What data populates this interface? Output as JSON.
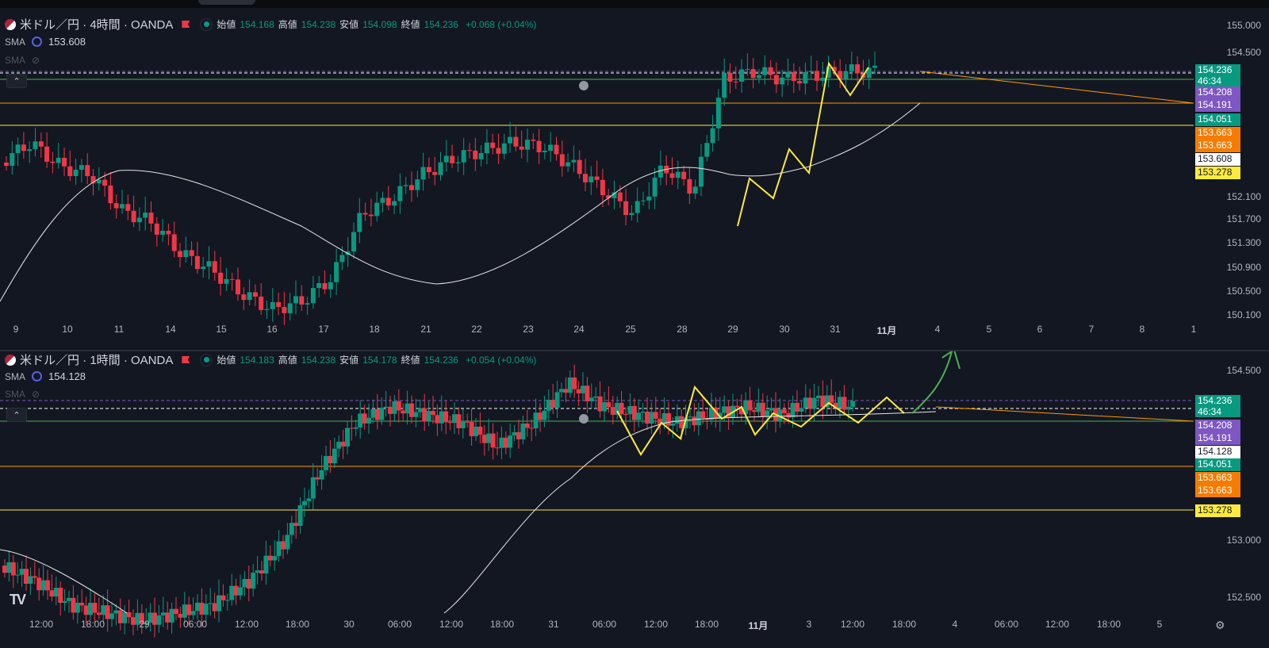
{
  "colors": {
    "bg": "#131722",
    "up": "#089981",
    "down": "#f23645",
    "sma": "#e6e6e6",
    "accent_purple": "#7e57c2",
    "yellow": "#ffeb3b",
    "orange": "#ff9800",
    "green_line": "#4caf50"
  },
  "pane1": {
    "symbol": "米ドル／円 · 4時間 · OANDA",
    "ohlc": {
      "open_label": "始値",
      "open": "154.168",
      "high_label": "高値",
      "high": "154.238",
      "low_label": "安値",
      "low": "154.098",
      "close_label": "終値",
      "close": "154.236",
      "change": "+0.068 (+0.04%)"
    },
    "sma_label": "SMA",
    "sma_value": "153.608",
    "sma2_label": "SMA",
    "price_ticks": [
      "155.000",
      "154.500",
      "152.100",
      "151.700",
      "151.300",
      "150.900",
      "150.500",
      "150.100"
    ],
    "tags": [
      {
        "text": "154.236",
        "sub": "46:34",
        "kind": "green"
      },
      {
        "text": "154.208",
        "kind": "purple"
      },
      {
        "text": "154.191",
        "kind": "purple"
      },
      {
        "text": "154.051",
        "kind": "green"
      },
      {
        "text": "153.663",
        "kind": "orange"
      },
      {
        "text": "153.663",
        "kind": "orange"
      },
      {
        "text": "153.608",
        "kind": "white"
      },
      {
        "text": "153.278",
        "kind": "yellow"
      }
    ],
    "time_labels": [
      "9",
      "10",
      "11",
      "14",
      "15",
      "16",
      "17",
      "18",
      "21",
      "22",
      "23",
      "24",
      "25",
      "28",
      "29",
      "30",
      "31",
      "11月",
      "4",
      "5",
      "6",
      "7",
      "8",
      "1"
    ]
  },
  "pane2": {
    "symbol": "米ドル／円 · 1時間 · OANDA",
    "ohlc": {
      "open_label": "始値",
      "open": "154.183",
      "high_label": "高値",
      "high": "154.238",
      "low_label": "安値",
      "low": "154.178",
      "close_label": "終値",
      "close": "154.236",
      "change": "+0.054 (+0.04%)"
    },
    "sma_label": "SMA",
    "sma_value": "154.128",
    "sma2_label": "SMA",
    "price_ticks": [
      "154.500",
      "153.000",
      "152.500"
    ],
    "tags": [
      {
        "text": "154.236",
        "sub": "46:34",
        "kind": "green"
      },
      {
        "text": "154.208",
        "kind": "purple"
      },
      {
        "text": "154.191",
        "kind": "purple"
      },
      {
        "text": "154.128",
        "kind": "white"
      },
      {
        "text": "154.051",
        "kind": "green"
      },
      {
        "text": "153.663",
        "kind": "orange"
      },
      {
        "text": "153.663",
        "kind": "orange"
      },
      {
        "text": "153.278",
        "kind": "yellow"
      }
    ],
    "time_labels": [
      "12:00",
      "18:00",
      "29",
      "06:00",
      "12:00",
      "18:00",
      "30",
      "06:00",
      "12:00",
      "18:00",
      "31",
      "06:00",
      "12:00",
      "18:00",
      "11月",
      "3",
      "12:00",
      "18:00",
      "4",
      "06:00",
      "12:00",
      "18:00",
      "5"
    ]
  },
  "logo": "TV",
  "icons": [
    "flag-icon",
    "flag-marker-icon",
    "status-dot-icon",
    "sma-source-icon",
    "eye-off-icon",
    "collapse-icon",
    "alarm-icon",
    "settings-icon",
    "tradingview-logo"
  ]
}
